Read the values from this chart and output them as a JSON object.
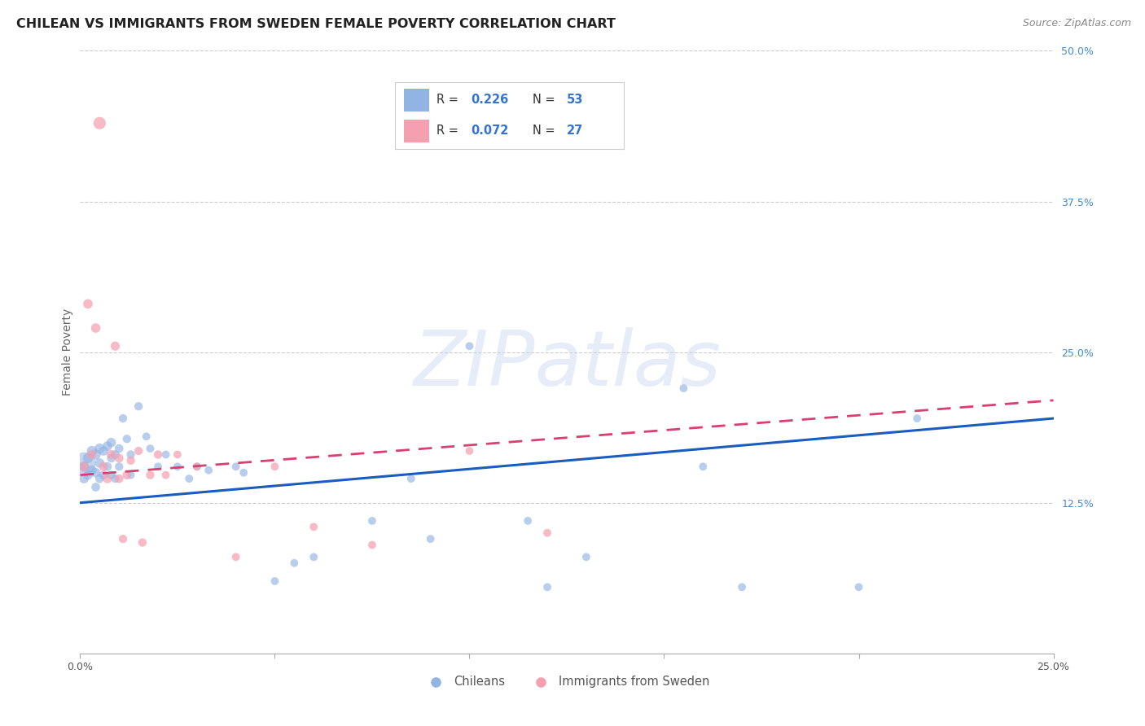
{
  "title": "CHILEAN VS IMMIGRANTS FROM SWEDEN FEMALE POVERTY CORRELATION CHART",
  "source": "Source: ZipAtlas.com",
  "ylabel_label": "Female Poverty",
  "xlim": [
    0.0,
    0.25
  ],
  "ylim": [
    0.0,
    0.5
  ],
  "chilean_R": 0.226,
  "chilean_N": 53,
  "sweden_R": 0.072,
  "sweden_N": 27,
  "legend_labels": [
    "Chileans",
    "Immigrants from Sweden"
  ],
  "chilean_color": "#92b4e3",
  "sweden_color": "#f4a0b0",
  "chilean_line_color": "#1a5cbf",
  "sweden_line_color": "#d94070",
  "watermark_text": "ZIPatlas",
  "ytick_vals": [
    0.0,
    0.125,
    0.25,
    0.375,
    0.5
  ],
  "ytick_labels": [
    "",
    "12.5%",
    "25.0%",
    "37.5%",
    "50.0%"
  ],
  "xtick_vals": [
    0.0,
    0.05,
    0.1,
    0.15,
    0.2,
    0.25
  ],
  "xtick_labels": [
    "0.0%",
    "",
    "",
    "",
    "",
    "25.0%"
  ],
  "chilean_x": [
    0.001,
    0.001,
    0.002,
    0.002,
    0.003,
    0.003,
    0.004,
    0.004,
    0.004,
    0.005,
    0.005,
    0.005,
    0.006,
    0.006,
    0.007,
    0.007,
    0.008,
    0.008,
    0.008,
    0.009,
    0.009,
    0.01,
    0.01,
    0.011,
    0.012,
    0.013,
    0.013,
    0.015,
    0.017,
    0.018,
    0.02,
    0.022,
    0.025,
    0.028,
    0.03,
    0.033,
    0.04,
    0.042,
    0.05,
    0.055,
    0.06,
    0.075,
    0.085,
    0.09,
    0.1,
    0.115,
    0.12,
    0.13,
    0.155,
    0.16,
    0.17,
    0.2,
    0.215
  ],
  "chilean_y": [
    0.155,
    0.145,
    0.162,
    0.148,
    0.168,
    0.152,
    0.165,
    0.15,
    0.138,
    0.17,
    0.158,
    0.145,
    0.168,
    0.148,
    0.172,
    0.155,
    0.175,
    0.162,
    0.148,
    0.165,
    0.145,
    0.17,
    0.155,
    0.195,
    0.178,
    0.165,
    0.148,
    0.205,
    0.18,
    0.17,
    0.155,
    0.165,
    0.155,
    0.145,
    0.155,
    0.152,
    0.155,
    0.15,
    0.06,
    0.075,
    0.08,
    0.11,
    0.145,
    0.095,
    0.255,
    0.11,
    0.055,
    0.08,
    0.22,
    0.155,
    0.055,
    0.055,
    0.195
  ],
  "chilean_sizes": [
    80,
    70,
    80,
    70,
    80,
    70,
    80,
    70,
    60,
    80,
    70,
    60,
    70,
    60,
    70,
    60,
    70,
    60,
    55,
    60,
    55,
    60,
    55,
    55,
    55,
    55,
    50,
    55,
    50,
    50,
    50,
    50,
    50,
    50,
    50,
    50,
    50,
    50,
    50,
    50,
    50,
    50,
    50,
    50,
    50,
    50,
    50,
    50,
    50,
    50,
    50,
    50,
    50
  ],
  "chilean_large_x": [
    0.001
  ],
  "chilean_large_y": [
    0.158
  ],
  "chilean_large_size": [
    400
  ],
  "sweden_x": [
    0.001,
    0.002,
    0.003,
    0.004,
    0.005,
    0.006,
    0.007,
    0.008,
    0.009,
    0.01,
    0.01,
    0.011,
    0.012,
    0.013,
    0.015,
    0.016,
    0.018,
    0.02,
    0.022,
    0.025,
    0.03,
    0.04,
    0.05,
    0.06,
    0.075,
    0.1,
    0.12
  ],
  "sweden_y": [
    0.155,
    0.29,
    0.165,
    0.27,
    0.44,
    0.155,
    0.145,
    0.165,
    0.255,
    0.145,
    0.162,
    0.095,
    0.148,
    0.16,
    0.168,
    0.092,
    0.148,
    0.165,
    0.148,
    0.165,
    0.155,
    0.08,
    0.155,
    0.105,
    0.09,
    0.168,
    0.1
  ],
  "sweden_sizes": [
    70,
    70,
    70,
    70,
    120,
    65,
    65,
    65,
    65,
    60,
    60,
    55,
    60,
    55,
    55,
    55,
    55,
    55,
    50,
    50,
    50,
    50,
    50,
    50,
    50,
    50,
    50
  ],
  "line_x_start": 0.0,
  "line_x_end": 0.25,
  "chilean_line_y_start": 0.125,
  "chilean_line_y_end": 0.195,
  "sweden_line_y_start": 0.148,
  "sweden_line_y_end": 0.21
}
